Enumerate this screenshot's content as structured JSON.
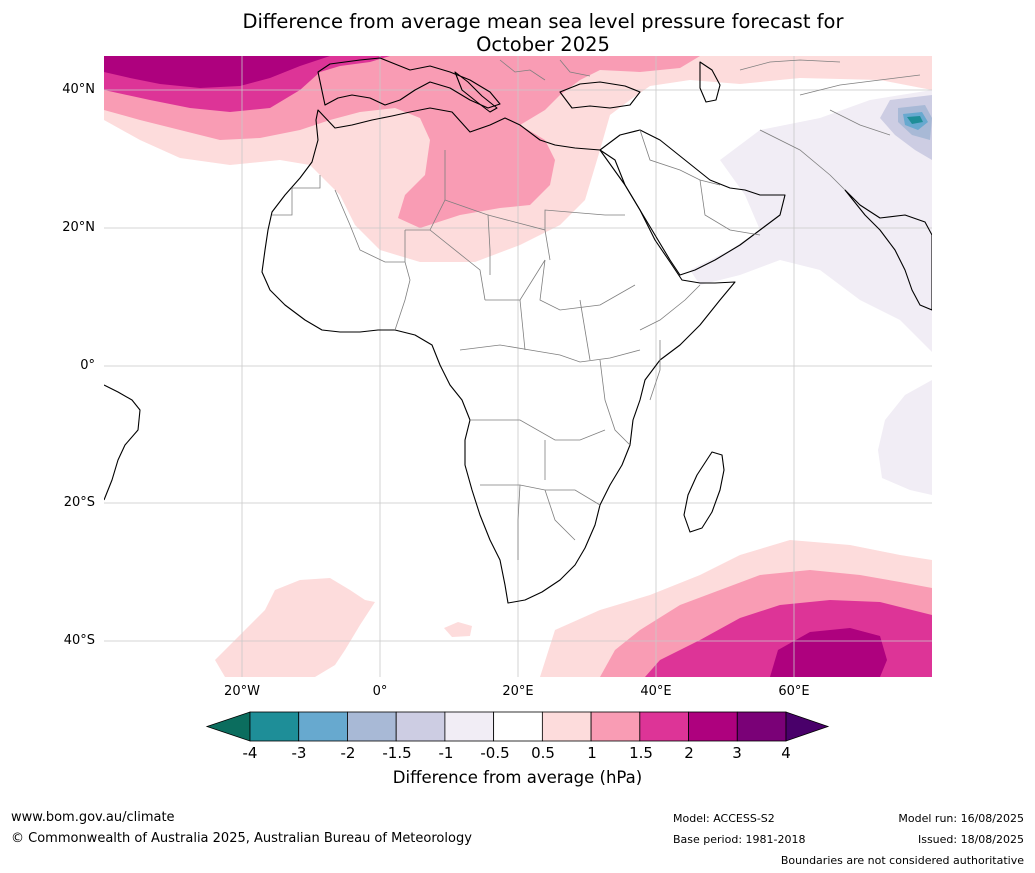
{
  "title_line1": "Difference from average mean sea level pressure forecast for",
  "title_line2": "October 2025",
  "latitude_labels": [
    "40°N",
    "20°N",
    "0°",
    "20°S",
    "40°S"
  ],
  "longitude_labels": [
    "20°W",
    "0°",
    "20°E",
    "40°E",
    "60°E"
  ],
  "colorbar": {
    "title": "Difference from average (hPa)",
    "ticks": [
      "-4",
      "-3",
      "-2",
      "-1.5",
      "-1",
      "-0.5",
      "0.5",
      "1",
      "1.5",
      "2",
      "3",
      "4"
    ],
    "colors": [
      "#0b6d5e",
      "#1e8e98",
      "#67a9cf",
      "#a8b9d6",
      "#cdcde3",
      "#f1edf5",
      "#ffffff",
      "#fddcdc",
      "#f99cb4",
      "#dd3497",
      "#ae017e",
      "#7a0177",
      "#49006a"
    ]
  },
  "footer": {
    "website": "www.bom.gov.au/climate",
    "copyright": "© Commonwealth of Australia 2025, Australian Bureau of Meteorology",
    "model": "Model: ACCESS-S2",
    "base_period": "Base period: 1981-2018",
    "model_run": "Model run: 16/08/2025",
    "issued": "Issued: 18/08/2025",
    "disclaimer": "Boundaries are not considered authoritative"
  }
}
